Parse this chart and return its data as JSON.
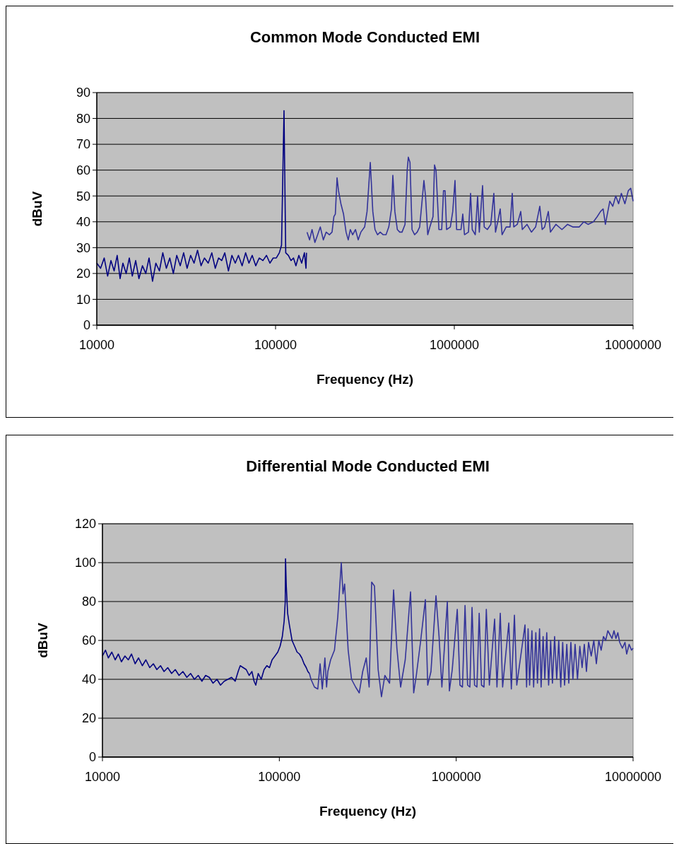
{
  "chart_data": [
    {
      "type": "line",
      "title": "Common Mode Conducted EMI",
      "xlabel": "Frequency (Hz)",
      "ylabel": "dBuV",
      "log": "x",
      "grid": "y",
      "xlim": [
        10000,
        10000000
      ],
      "xticks": [
        10000,
        100000,
        1000000,
        10000000
      ],
      "ylim": [
        0,
        90
      ],
      "yticks": [
        0,
        10,
        20,
        30,
        40,
        50,
        60,
        70,
        80,
        90
      ],
      "series": [
        {
          "color": "#000080",
          "x": [
            10000,
            10500,
            11000,
            11500,
            12000,
            12500,
            13000,
            13500,
            14000,
            14600,
            15200,
            15800,
            16500,
            17200,
            18000,
            18800,
            19600,
            20500,
            21400,
            22400,
            23400,
            24500,
            25600,
            26800,
            28000,
            29300,
            30600,
            32000,
            33500,
            35000,
            36600,
            38300,
            40000,
            42000,
            44000,
            46000,
            48000,
            50000,
            52000,
            54500,
            57000,
            59500,
            62000,
            65000,
            68000,
            71000,
            74000,
            77500,
            81000,
            85000,
            89000,
            93000,
            97000,
            101000,
            105000,
            108000,
            109600,
            111500,
            112500,
            114000,
            118000,
            122000,
            126000,
            130000,
            135000,
            140000,
            145000,
            148000,
            149000
          ],
          "values": [
            24,
            22,
            26,
            19,
            25,
            21,
            27,
            18,
            24,
            20,
            26,
            19,
            25,
            18,
            23,
            20,
            26,
            17,
            24,
            21,
            28,
            22,
            26,
            20,
            27,
            23,
            28,
            22,
            27,
            24,
            29,
            23,
            26,
            24,
            28,
            22,
            26,
            25,
            28,
            21,
            27,
            24,
            27,
            23,
            28,
            24,
            27,
            23,
            26,
            25,
            27,
            24,
            26,
            26,
            28,
            31,
            55,
            83,
            60,
            28,
            27,
            25,
            26,
            23,
            27,
            24,
            28,
            22,
            28
          ]
        },
        {
          "color": "#333399",
          "x": [
            150000,
            155000,
            160000,
            166000,
            172000,
            178000,
            185000,
            192000,
            200000,
            207000,
            212000,
            216000,
            220800,
            225000,
            232000,
            240000,
            248000,
            255000,
            262000,
            270000,
            280000,
            290000,
            300000,
            315000,
            325000,
            338800,
            350000,
            360000,
            372000,
            385000,
            400000,
            415000,
            430000,
            445000,
            453000,
            465000,
            480000,
            495000,
            510000,
            530000,
            545000,
            553000,
            565000,
            580000,
            600000,
            620000,
            640000,
            660000,
            676000,
            690000,
            710000,
            730000,
            760000,
            775000,
            790000,
            820000,
            850000,
            870000,
            888000,
            905000,
            950000,
            980000,
            1009000,
            1030000,
            1070000,
            1090000,
            1115000,
            1140000,
            1200000,
            1233000,
            1260000,
            1310000,
            1350000,
            1380000,
            1439000,
            1470000,
            1530000,
            1600000,
            1664000,
            1700000,
            1750000,
            1806000,
            1850000,
            1950000,
            2050000,
            2109000,
            2150000,
            2250000,
            2353000,
            2400000,
            2550000,
            2700000,
            2850000,
            3007000,
            3100000,
            3200000,
            3356000,
            3450000,
            3700000,
            4000000,
            4300000,
            4600000,
            5000000,
            5300000,
            5600000,
            6000000,
            6300000,
            6577000,
            6800000,
            7000000,
            7410000,
            7700000,
            8000000,
            8300000,
            8600000,
            9000000,
            9400000,
            9700000,
            10000000
          ],
          "values": [
            36,
            33,
            37,
            32,
            35,
            38,
            33,
            36,
            35,
            36,
            42,
            43,
            57,
            52,
            47,
            43,
            36,
            33,
            37,
            35,
            37,
            33,
            36,
            38,
            44,
            63,
            44,
            37,
            35,
            36,
            35,
            35,
            38,
            45,
            58,
            44,
            37,
            36,
            36,
            39,
            60,
            65,
            63,
            37,
            35,
            36,
            38,
            48,
            56,
            50,
            35,
            38,
            42,
            62,
            60,
            37,
            37,
            52,
            52,
            37,
            38,
            44,
            56,
            37,
            37,
            37,
            43,
            35,
            36,
            51,
            37,
            35,
            50,
            36,
            54,
            38,
            37,
            39,
            51,
            36,
            40,
            45,
            35,
            38,
            38,
            51,
            38,
            39,
            44,
            37,
            39,
            36,
            38,
            46,
            37,
            38,
            44,
            36,
            39,
            37,
            39,
            38,
            38,
            40,
            39,
            40,
            42,
            44,
            45,
            39,
            48,
            46,
            50,
            47,
            51,
            47,
            52,
            53,
            48
          ]
        }
      ]
    },
    {
      "type": "line",
      "title": "Differential Mode Conducted EMI",
      "xlabel": "Frequency (Hz)",
      "ylabel": "dBuV",
      "log": "x",
      "grid": "y",
      "xlim": [
        10000,
        10000000
      ],
      "xticks": [
        10000,
        100000,
        1000000,
        10000000
      ],
      "ylim": [
        0,
        120
      ],
      "yticks": [
        0,
        20,
        40,
        60,
        80,
        100,
        120
      ],
      "series": [
        {
          "color": "#000080",
          "x": [
            10000,
            10400,
            10800,
            11300,
            11800,
            12300,
            12800,
            13400,
            14000,
            14600,
            15300,
            16000,
            16800,
            17600,
            18500,
            19400,
            20300,
            21300,
            22300,
            23400,
            24600,
            25800,
            27100,
            28500,
            30000,
            31500,
            33100,
            34800,
            36500,
            38300,
            40200,
            42200,
            44400,
            46500,
            48800,
            51200,
            53700,
            56300,
            58500,
            60100,
            62500,
            65000,
            67500,
            70000,
            72000,
            73600,
            76000,
            79000,
            82000,
            85000,
            88000,
            91000,
            94500,
            98000,
            101000,
            104000,
            106500,
            108000,
            108400,
            109500,
            111400,
            114000,
            118000,
            122000,
            126000,
            130000,
            134000,
            138000,
            142000,
            145000,
            148000
          ],
          "values": [
            52,
            55,
            51,
            54,
            50,
            53,
            49,
            52,
            50,
            53,
            48,
            51,
            47,
            50,
            46,
            48,
            45,
            47,
            44,
            46,
            43,
            45,
            42,
            44,
            41,
            43,
            40,
            42,
            39,
            42,
            41,
            38,
            40,
            37,
            39,
            40,
            41,
            39,
            44,
            47,
            46,
            45,
            42,
            44,
            39,
            37,
            43,
            40,
            45,
            47,
            46,
            50,
            52,
            54,
            57,
            62,
            70,
            80,
            102,
            88,
            74,
            68,
            60,
            57,
            54,
            53,
            51,
            48,
            46,
            44,
            43
          ]
        },
        {
          "color": "#333399",
          "x": [
            148000,
            151000,
            158000,
            165000,
            170000,
            175000,
            181000,
            185000,
            188000,
            195000,
            205000,
            214000,
            224000,
            229000,
            234000,
            245000,
            256000,
            270000,
            283000,
            296000,
            310000,
            322000,
            332700,
            345000,
            362000,
            378000,
            395000,
            420000,
            442600,
            462000,
            485000,
            515000,
            552000,
            575000,
            595000,
            630000,
            669500,
            690000,
            720000,
            768600,
            800000,
            830000,
            891000,
            915000,
            950000,
            1014000,
            1050000,
            1085000,
            1122000,
            1160000,
            1195000,
            1229000,
            1270000,
            1310000,
            1349000,
            1390000,
            1436000,
            1480000,
            1540000,
            1649000,
            1700000,
            1775000,
            1830000,
            1983000,
            2050000,
            2134000,
            2200000,
            2449000,
            2500000,
            2550000,
            2600000,
            2680000,
            2740000,
            2820000,
            2880000,
            2960000,
            3020000,
            3100000,
            3170000,
            3250000,
            3330000,
            3420000,
            3500000,
            3600000,
            3700000,
            3800000,
            3900000,
            4000000,
            4100000,
            4220000,
            4330000,
            4450000,
            4570000,
            4700000,
            4850000,
            5000000,
            5150000,
            5300000,
            5450000,
            5600000,
            5800000,
            6000000,
            6200000,
            6400000,
            6600000,
            6800000,
            7000000,
            7200000,
            7400000,
            7600000,
            7800000,
            8000000,
            8200000,
            8400000,
            8700000,
            9000000,
            9200000,
            9500000,
            9800000,
            10000000
          ],
          "values": [
            43,
            40,
            36,
            35,
            48,
            35,
            51,
            36,
            44,
            50,
            55,
            72,
            100,
            84,
            89,
            55,
            40,
            36,
            33,
            44,
            51,
            36,
            90,
            88,
            45,
            31,
            42,
            38,
            86,
            56,
            36,
            50,
            85,
            33,
            42,
            60,
            81,
            37,
            44,
            83,
            62,
            36,
            80,
            34,
            45,
            76,
            37,
            36,
            78,
            37,
            36,
            77,
            37,
            36,
            74,
            37,
            36,
            76,
            37,
            71,
            36,
            74,
            36,
            69,
            35,
            73,
            37,
            68,
            36,
            66,
            37,
            65,
            36,
            64,
            38,
            66,
            36,
            62,
            40,
            64,
            37,
            60,
            38,
            62,
            40,
            60,
            36,
            59,
            37,
            58,
            38,
            59,
            40,
            58,
            40,
            57,
            46,
            58,
            44,
            59,
            52,
            60,
            48,
            60,
            55,
            62,
            60,
            65,
            63,
            61,
            65,
            61,
            64,
            59,
            56,
            59,
            53,
            58,
            55,
            56
          ]
        }
      ]
    }
  ]
}
